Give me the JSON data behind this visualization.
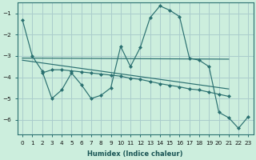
{
  "xlabel": "Humidex (Indice chaleur)",
  "bg_color": "#cceedd",
  "grid_color": "#aacccc",
  "line_color": "#2a7070",
  "xlim": [
    -0.5,
    23.5
  ],
  "ylim": [
    -6.7,
    -0.5
  ],
  "yticks": [
    -6,
    -5,
    -4,
    -3,
    -2,
    -1
  ],
  "xticks": [
    0,
    1,
    2,
    3,
    4,
    5,
    6,
    7,
    8,
    9,
    10,
    11,
    12,
    13,
    14,
    15,
    16,
    17,
    18,
    19,
    20,
    21,
    22,
    23
  ],
  "line1_x": [
    0,
    1,
    2,
    3,
    4,
    5,
    6,
    7,
    8,
    9,
    10,
    11,
    12,
    13,
    14,
    15,
    16,
    17,
    18,
    19,
    20,
    21,
    22,
    23
  ],
  "line1_y": [
    -1.3,
    -3.0,
    -3.7,
    -5.0,
    -4.6,
    -3.8,
    -4.35,
    -5.0,
    -4.85,
    -4.5,
    -2.55,
    -3.5,
    -2.6,
    -1.2,
    -0.65,
    -0.85,
    -1.15,
    -3.1,
    -3.2,
    -3.5,
    -5.65,
    -5.9,
    -6.4,
    -5.85
  ],
  "line2_x": [
    2,
    3,
    4,
    5,
    6,
    7,
    8,
    9,
    10,
    11,
    12,
    13,
    14,
    15,
    16,
    17,
    18,
    19,
    20,
    21
  ],
  "line2_y": [
    -3.8,
    -3.65,
    -3.65,
    -3.7,
    -3.75,
    -3.8,
    -3.85,
    -3.9,
    -3.95,
    -4.05,
    -4.1,
    -4.2,
    -4.3,
    -4.38,
    -4.45,
    -4.55,
    -4.6,
    -4.7,
    -4.8,
    -4.9
  ],
  "line3_x": [
    0,
    21
  ],
  "line3_y": [
    -3.1,
    -3.15
  ],
  "line4_x": [
    0,
    21
  ],
  "line4_y": [
    -3.2,
    -4.55
  ]
}
